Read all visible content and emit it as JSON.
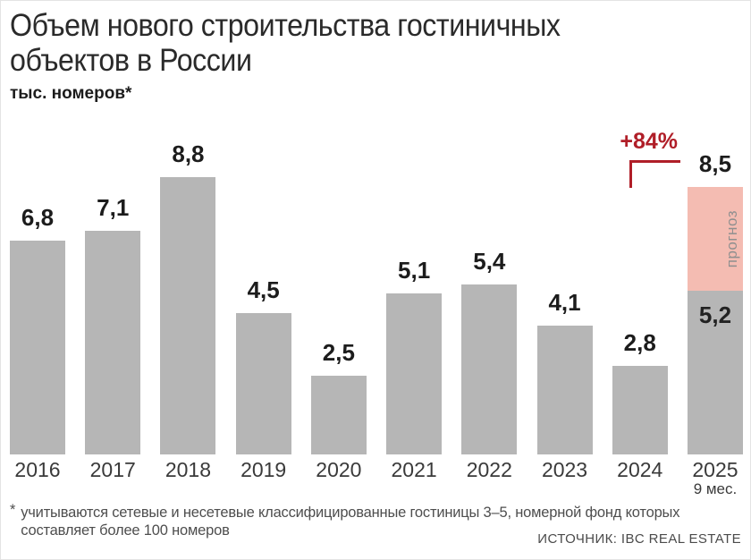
{
  "header": {
    "title_line1": "Объем нового строительства гостиничных",
    "title_line2": "объектов в России",
    "unit_label": "тыс. номеров*"
  },
  "chart_data": {
    "type": "bar",
    "title": "Объем нового строительства гостиничных объектов в России",
    "ylabel": "тыс. номеров*",
    "categories": [
      "2016",
      "2017",
      "2018",
      "2019",
      "2020",
      "2021",
      "2022",
      "2023",
      "2024",
      "2025"
    ],
    "values": [
      6.8,
      7.1,
      8.8,
      4.5,
      2.5,
      5.1,
      5.4,
      4.1,
      2.8,
      8.5
    ],
    "value_labels": [
      "6,8",
      "7,1",
      "8,8",
      "4,5",
      "2,5",
      "5,1",
      "5,4",
      "4,1",
      "2,8",
      "8,5"
    ],
    "ylim": [
      0,
      9
    ],
    "grid": false,
    "legend": "none",
    "bar_color": "#b6b6b6",
    "forecast_color": "#f4bcb2",
    "accent_color": "#b01e28",
    "last_bar": {
      "category": "2025",
      "period_note": "9 мес.",
      "actual_value": 5.2,
      "actual_label": "5,2",
      "forecast_value": 3.3,
      "total_value": 8.5,
      "total_label": "8,5",
      "forecast_text": "прогноз"
    },
    "annotation": {
      "text": "+84%",
      "from_category": "2024",
      "to_category": "2025"
    }
  },
  "footer": {
    "footnote_marker": "*",
    "footnote_line1": "учитываются сетевые и несетевые классифицированные гостиницы 3–5, номерной фонд которых",
    "footnote_line2": "составляет более 100 номеров",
    "source": "ИСТОЧНИК: IBC REAL ESTATE"
  }
}
